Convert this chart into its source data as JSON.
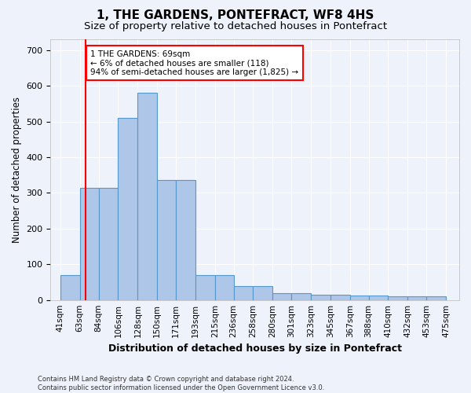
{
  "title": "1, THE GARDENS, PONTEFRACT, WF8 4HS",
  "subtitle": "Size of property relative to detached houses in Pontefract",
  "xlabel": "Distribution of detached houses by size in Pontefract",
  "ylabel": "Number of detached properties",
  "bar_left_edges": [
    41,
    63,
    84,
    106,
    128,
    150,
    171,
    193,
    215,
    236,
    258,
    280,
    301,
    323,
    345,
    367,
    388,
    410,
    432,
    453
  ],
  "bar_widths": [
    22,
    21,
    22,
    22,
    22,
    21,
    22,
    22,
    21,
    22,
    22,
    21,
    22,
    22,
    22,
    21,
    22,
    22,
    21,
    22
  ],
  "bar_heights": [
    70,
    315,
    315,
    510,
    580,
    335,
    335,
    70,
    70,
    40,
    40,
    20,
    20,
    15,
    15,
    12,
    12,
    10,
    10,
    10
  ],
  "bar_color": "#aec6e8",
  "bar_edge_color": "#5599cc",
  "x_tick_labels": [
    "41sqm",
    "63sqm",
    "84sqm",
    "106sqm",
    "128sqm",
    "150sqm",
    "171sqm",
    "193sqm",
    "215sqm",
    "236sqm",
    "258sqm",
    "280sqm",
    "301sqm",
    "323sqm",
    "345sqm",
    "367sqm",
    "388sqm",
    "410sqm",
    "432sqm",
    "453sqm",
    "475sqm"
  ],
  "x_tick_positions": [
    41,
    63,
    84,
    106,
    128,
    150,
    171,
    193,
    215,
    236,
    258,
    280,
    301,
    323,
    345,
    367,
    388,
    410,
    432,
    453,
    475
  ],
  "ylim": [
    0,
    730
  ],
  "xlim": [
    30,
    490
  ],
  "red_line_x": 69,
  "annotation_text": "1 THE GARDENS: 69sqm\n← 6% of detached houses are smaller (118)\n94% of semi-detached houses are larger (1,825) →",
  "footer_text": "Contains HM Land Registry data © Crown copyright and database right 2024.\nContains public sector information licensed under the Open Government Licence v3.0.",
  "background_color": "#eef2fb",
  "grid_color": "#ffffff",
  "title_fontsize": 11,
  "subtitle_fontsize": 9.5,
  "ylabel_fontsize": 8.5,
  "xlabel_fontsize": 9,
  "tick_fontsize": 7.5,
  "ytick_fontsize": 8,
  "footer_fontsize": 6
}
